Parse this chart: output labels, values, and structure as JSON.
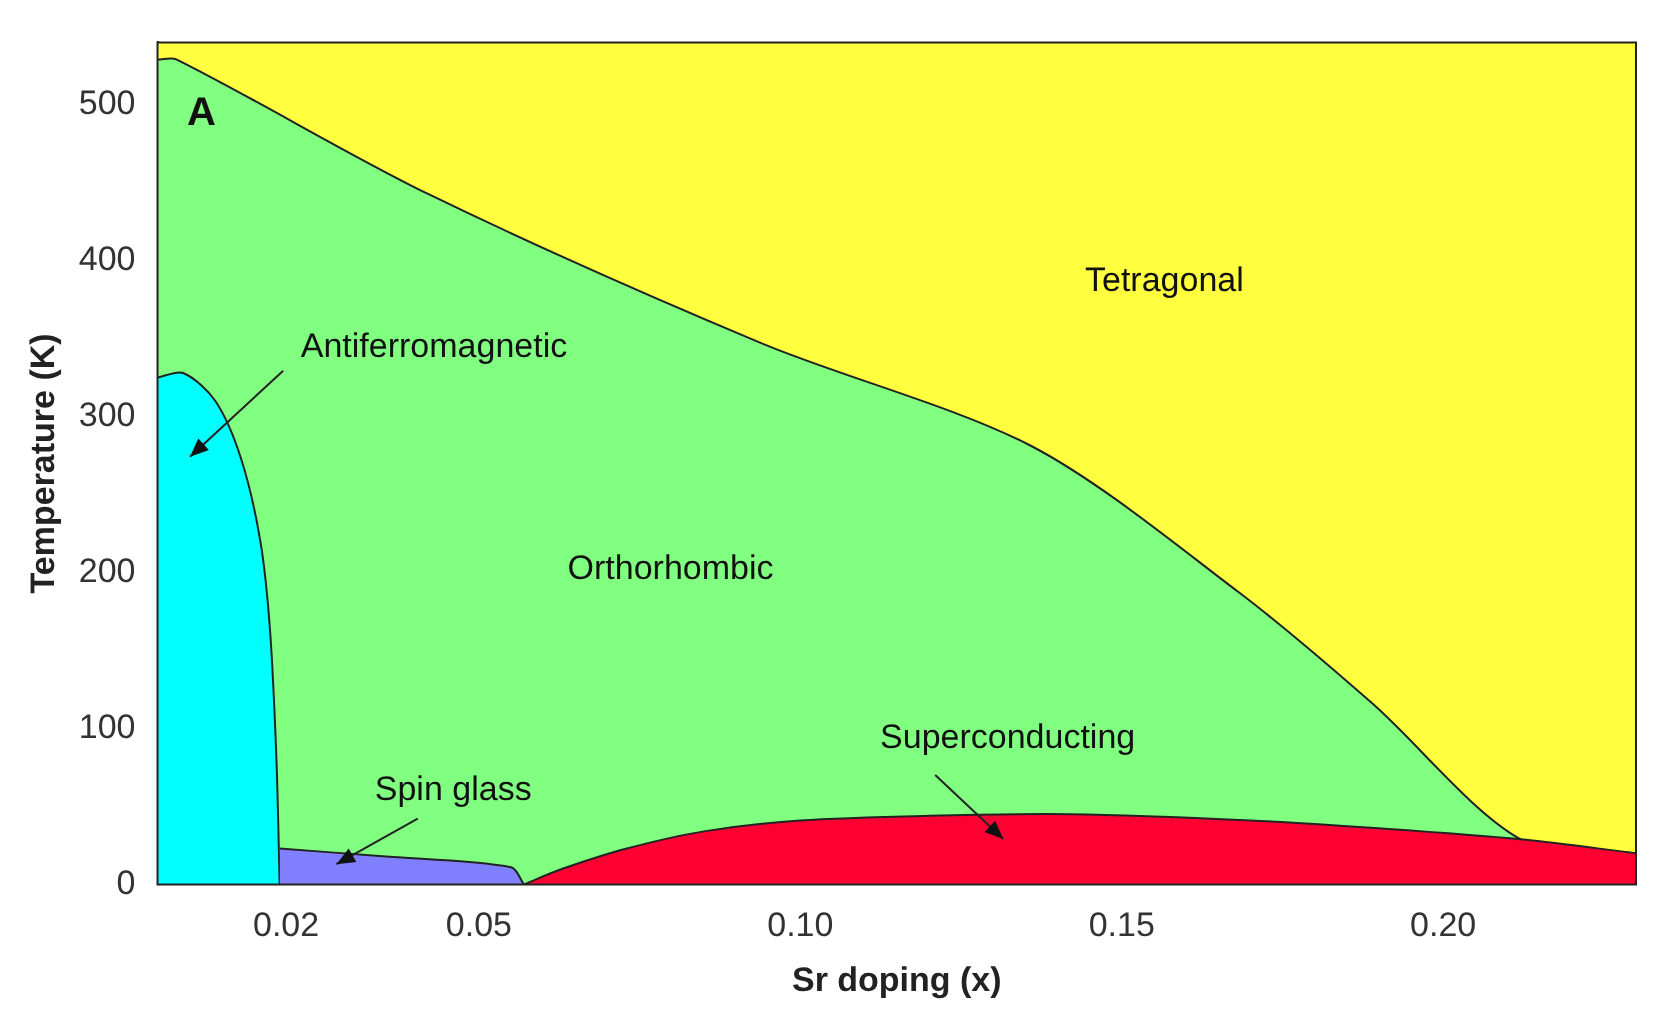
{
  "chart_data": {
    "type": "area",
    "xlabel": "Sr doping (x)",
    "ylabel": "Temperature (K)",
    "xlim": [
      0,
      0.23
    ],
    "ylim": [
      0,
      540
    ],
    "xticks": [
      0.02,
      0.05,
      {
        "value": 0.1,
        "label": "0.10"
      },
      0.15,
      {
        "value": 0.2,
        "label": "0.20"
      }
    ],
    "yticks": [
      0,
      100,
      200,
      300,
      400,
      500
    ],
    "marker": "none",
    "bands": [
      {
        "axis": "y",
        "from": 0,
        "to": 540,
        "color": "#ffff40"
      }
    ],
    "annotations": [
      "A",
      "Tetragonal",
      "Orthorhombic",
      "Antiferromagnetic",
      "Spin glass",
      "Superconducting"
    ],
    "series": [
      {
        "color": "#80ff80",
        "x": [
          0,
          0.003,
          0.042,
          0.094,
          0.136,
          0.168,
          0.189,
          0.212,
          0.23
        ],
        "values": [
          529,
          529,
          443,
          347,
          281,
          188,
          116,
          29,
          20
        ]
      },
      {
        "color": "#00ffff",
        "x": [
          0,
          0.004,
          0.009,
          0.013,
          0.016,
          0.0175,
          0.0185,
          0.019
        ],
        "values": [
          325,
          328,
          310,
          273,
          220,
          163,
          80,
          0
        ]
      },
      {
        "color": "#8080ff",
        "x": [
          0.019,
          0.035,
          0.055,
          0.057
        ],
        "values": [
          23,
          18,
          11,
          0
        ]
      },
      {
        "color": "#ff0033",
        "x": [
          0.057,
          0.063,
          0.073,
          0.085,
          0.1,
          0.12,
          0.142,
          0.17,
          0.19,
          0.212,
          0.23
        ],
        "values": [
          0,
          10,
          23,
          34,
          41,
          44,
          45,
          41,
          36,
          29,
          20
        ]
      }
    ]
  }
}
